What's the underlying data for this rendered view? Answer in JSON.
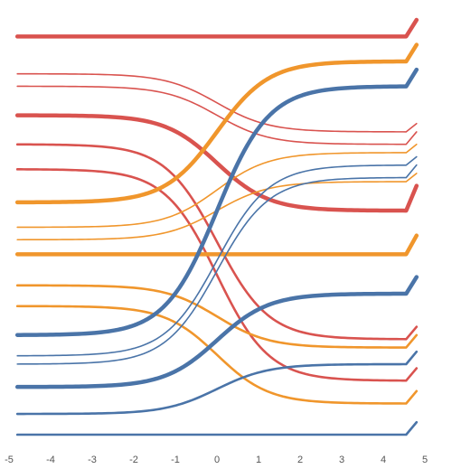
{
  "chart_data": {
    "type": "line",
    "title": "",
    "xlabel": "",
    "ylabel": "",
    "xlim": [
      -5,
      5
    ],
    "ylim": [
      0,
      10
    ],
    "grid": false,
    "legend": "none",
    "x_ticks": [
      "-5",
      "-4",
      "-3",
      "-2",
      "-1",
      "0",
      "1",
      "2",
      "3",
      "4",
      "5"
    ],
    "series": [
      {
        "start": 9.6,
        "end": 9.6,
        "end_tip": 10.0,
        "color": "#d9534f",
        "weight": "thick"
      },
      {
        "start": 8.7,
        "end": 7.3,
        "end_tip": 7.5,
        "color": "#d9534f",
        "weight": "thin"
      },
      {
        "start": 8.4,
        "end": 7.0,
        "end_tip": 7.3,
        "color": "#d9534f",
        "weight": "thin"
      },
      {
        "start": 7.7,
        "end": 5.4,
        "end_tip": 6.0,
        "color": "#d9534f",
        "weight": "thick"
      },
      {
        "start": 7.0,
        "end": 2.3,
        "end_tip": 2.6,
        "color": "#d9534f",
        "weight": "medium"
      },
      {
        "start": 6.4,
        "end": 1.3,
        "end_tip": 1.6,
        "color": "#d9534f",
        "weight": "medium"
      },
      {
        "start": 5.6,
        "end": 9.0,
        "end_tip": 9.4,
        "color": "#f0962c",
        "weight": "thick"
      },
      {
        "start": 5.0,
        "end": 6.8,
        "end_tip": 7.0,
        "color": "#f0962c",
        "weight": "thin"
      },
      {
        "start": 4.7,
        "end": 6.1,
        "end_tip": 6.3,
        "color": "#f0962c",
        "weight": "thin"
      },
      {
        "start": 4.35,
        "end": 4.35,
        "end_tip": 4.8,
        "color": "#f0962c",
        "weight": "thick"
      },
      {
        "start": 3.6,
        "end": 2.1,
        "end_tip": 2.4,
        "color": "#f0962c",
        "weight": "medium"
      },
      {
        "start": 3.1,
        "end": 0.75,
        "end_tip": 1.05,
        "color": "#f0962c",
        "weight": "medium"
      },
      {
        "start": 2.4,
        "end": 8.4,
        "end_tip": 8.8,
        "color": "#4a74a8",
        "weight": "thick"
      },
      {
        "start": 1.9,
        "end": 6.5,
        "end_tip": 6.7,
        "color": "#4a74a8",
        "weight": "thin"
      },
      {
        "start": 1.7,
        "end": 6.2,
        "end_tip": 6.5,
        "color": "#4a74a8",
        "weight": "thin"
      },
      {
        "start": 1.15,
        "end": 3.4,
        "end_tip": 3.8,
        "color": "#4a74a8",
        "weight": "thick"
      },
      {
        "start": 0.5,
        "end": 1.7,
        "end_tip": 2.0,
        "color": "#4a74a8",
        "weight": "medium"
      },
      {
        "start": 0.0,
        "end": 0.0,
        "end_tip": 0.3,
        "color": "#4a74a8",
        "weight": "medium"
      }
    ]
  }
}
